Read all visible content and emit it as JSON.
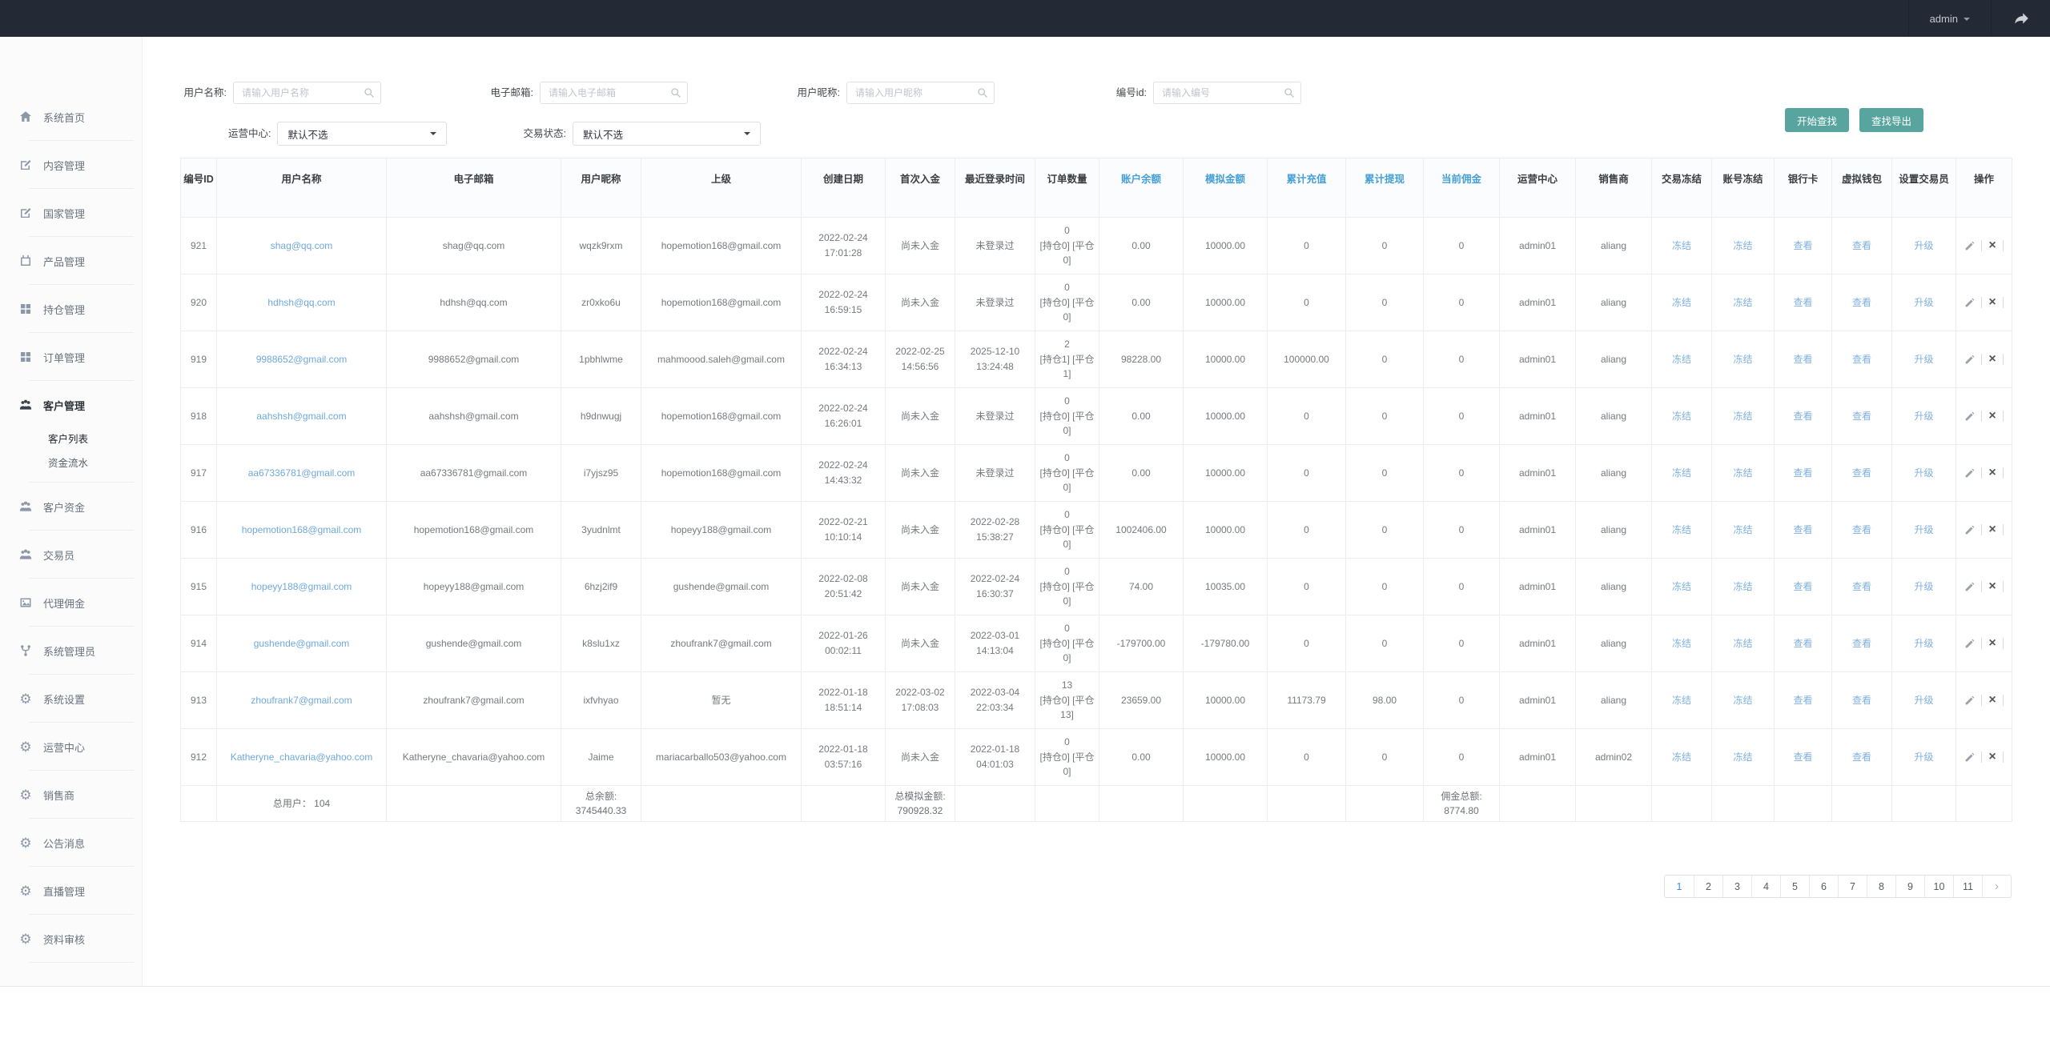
{
  "colors": {
    "topbar_bg": "#242a35",
    "accent_teal": "#58a49f",
    "link_blue": "#6fa8dc",
    "header_blue": "#459fd6",
    "active_page_blue": "#3e8ddd"
  },
  "topbar": {
    "username": "admin"
  },
  "sidebar": {
    "items": [
      {
        "id": "home",
        "icon": "home",
        "label": "系统首页"
      },
      {
        "id": "content",
        "icon": "edit",
        "label": "内容管理"
      },
      {
        "id": "country",
        "icon": "edit",
        "label": "国家管理"
      },
      {
        "id": "product",
        "icon": "calendar",
        "label": "产品管理"
      },
      {
        "id": "position",
        "icon": "grid",
        "label": "持仓管理"
      },
      {
        "id": "order",
        "icon": "grid",
        "label": "订单管理"
      },
      {
        "id": "customer",
        "icon": "users",
        "label": "客户管理",
        "active": true,
        "children": [
          {
            "id": "customer-list",
            "label": "客户列表",
            "active": true
          },
          {
            "id": "fund-flow",
            "label": "资金流水"
          }
        ]
      },
      {
        "id": "customer-funds",
        "icon": "users",
        "label": "客户资金"
      },
      {
        "id": "trader",
        "icon": "users",
        "label": "交易员"
      },
      {
        "id": "agent-commission",
        "icon": "image",
        "label": "代理佣金"
      },
      {
        "id": "sys-admin",
        "icon": "branch",
        "label": "系统管理员"
      },
      {
        "id": "sys-settings",
        "icon": "gear",
        "label": "系统设置"
      },
      {
        "id": "op-center",
        "icon": "gear",
        "label": "运营中心"
      },
      {
        "id": "seller",
        "icon": "gear",
        "label": "销售商"
      },
      {
        "id": "announcement",
        "icon": "gear",
        "label": "公告消息"
      },
      {
        "id": "live",
        "icon": "gear",
        "label": "直播管理"
      },
      {
        "id": "audit",
        "icon": "gear",
        "label": "资料审核"
      }
    ]
  },
  "filters": {
    "fields": [
      {
        "label": "用户名称:",
        "placeholder": "请输入用户名称"
      },
      {
        "label": "电子邮箱:",
        "placeholder": "请输入电子邮箱"
      },
      {
        "label": "用户昵称:",
        "placeholder": "请输入用户昵称"
      },
      {
        "label": "编号id:",
        "placeholder": "请输入编号"
      }
    ],
    "selects": [
      {
        "label": "运营中心:",
        "value": "默认不选"
      },
      {
        "label": "交易状态:",
        "value": "默认不选"
      }
    ],
    "buttons": [
      "开始查找",
      "查找导出"
    ]
  },
  "table": {
    "headers": [
      {
        "label": "编号ID"
      },
      {
        "label": "用户名称"
      },
      {
        "label": "电子邮箱"
      },
      {
        "label": "用户昵称"
      },
      {
        "label": "上级"
      },
      {
        "label": "创建日期"
      },
      {
        "label": "首次入金"
      },
      {
        "label": "最近登录时间"
      },
      {
        "label": "订单数量"
      },
      {
        "label": "账户余额",
        "blue": true
      },
      {
        "label": "模拟金额",
        "blue": true
      },
      {
        "label": "累计充值",
        "blue": true
      },
      {
        "label": "累计提现",
        "blue": true
      },
      {
        "label": "当前佣金",
        "blue": true
      },
      {
        "label": "运营中心"
      },
      {
        "label": "销售商"
      },
      {
        "label": "交易冻结"
      },
      {
        "label": "账号冻结"
      },
      {
        "label": "银行卡"
      },
      {
        "label": "虚拟钱包"
      },
      {
        "label": "设置交易员"
      },
      {
        "label": "操作"
      }
    ],
    "row_actions": {
      "trade_freeze": "冻结",
      "account_freeze": "冻结",
      "bank_card": "查看",
      "wallet": "查看",
      "set_trader": "升级"
    },
    "rows": [
      {
        "id": "921",
        "name": "shag@qq.com",
        "email": "shag@qq.com",
        "nick": "wqzk9rxm",
        "parent": "hopemotion168@gmail.com",
        "created": "2022-02-24 17:01:28",
        "first_deposit": "尚未入金",
        "last_login": "未登录过",
        "orders_count": "0",
        "orders_detail": "[持仓0] [平仓0]",
        "balance": "0.00",
        "demo": "10000.00",
        "recharge": "0",
        "withdraw": "0",
        "commission": "0",
        "center": "admin01",
        "seller": "aliang"
      },
      {
        "id": "920",
        "name": "hdhsh@qq.com",
        "email": "hdhsh@qq.com",
        "nick": "zr0xko6u",
        "parent": "hopemotion168@gmail.com",
        "created": "2022-02-24 16:59:15",
        "first_deposit": "尚未入金",
        "last_login": "未登录过",
        "orders_count": "0",
        "orders_detail": "[持仓0] [平仓0]",
        "balance": "0.00",
        "demo": "10000.00",
        "recharge": "0",
        "withdraw": "0",
        "commission": "0",
        "center": "admin01",
        "seller": "aliang"
      },
      {
        "id": "919",
        "name": "9988652@gmail.com",
        "email": "9988652@gmail.com",
        "nick": "1pbhlwme",
        "parent": "mahmoood.saleh@gmail.com",
        "created": "2022-02-24 16:34:13",
        "first_deposit": "2022-02-25 14:56:56",
        "last_login": "2025-12-10 13:24:48",
        "orders_count": "2",
        "orders_detail": "[持仓1] [平仓1]",
        "balance": "98228.00",
        "demo": "10000.00",
        "recharge": "100000.00",
        "withdraw": "0",
        "commission": "0",
        "center": "admin01",
        "seller": "aliang"
      },
      {
        "id": "918",
        "name": "aahshsh@gmail.com",
        "email": "aahshsh@gmail.com",
        "nick": "h9dnwugj",
        "parent": "hopemotion168@gmail.com",
        "created": "2022-02-24 16:26:01",
        "first_deposit": "尚未入金",
        "last_login": "未登录过",
        "orders_count": "0",
        "orders_detail": "[持仓0] [平仓0]",
        "balance": "0.00",
        "demo": "10000.00",
        "recharge": "0",
        "withdraw": "0",
        "commission": "0",
        "center": "admin01",
        "seller": "aliang"
      },
      {
        "id": "917",
        "name": "aa67336781@gmail.com",
        "email": "aa67336781@gmail.com",
        "nick": "i7yjsz95",
        "parent": "hopemotion168@gmail.com",
        "created": "2022-02-24 14:43:32",
        "first_deposit": "尚未入金",
        "last_login": "未登录过",
        "orders_count": "0",
        "orders_detail": "[持仓0] [平仓0]",
        "balance": "0.00",
        "demo": "10000.00",
        "recharge": "0",
        "withdraw": "0",
        "commission": "0",
        "center": "admin01",
        "seller": "aliang"
      },
      {
        "id": "916",
        "name": "hopemotion168@gmail.com",
        "email": "hopemotion168@gmail.com",
        "nick": "3yudnlmt",
        "parent": "hopeyy188@gmail.com",
        "created": "2022-02-21 10:10:14",
        "first_deposit": "尚未入金",
        "last_login": "2022-02-28 15:38:27",
        "orders_count": "0",
        "orders_detail": "[持仓0] [平仓0]",
        "balance": "1002406.00",
        "demo": "10000.00",
        "recharge": "0",
        "withdraw": "0",
        "commission": "0",
        "center": "admin01",
        "seller": "aliang"
      },
      {
        "id": "915",
        "name": "hopeyy188@gmail.com",
        "email": "hopeyy188@gmail.com",
        "nick": "6hzj2if9",
        "parent": "gushende@gmail.com",
        "created": "2022-02-08 20:51:42",
        "first_deposit": "尚未入金",
        "last_login": "2022-02-24 16:30:37",
        "orders_count": "0",
        "orders_detail": "[持仓0] [平仓0]",
        "balance": "74.00",
        "demo": "10035.00",
        "recharge": "0",
        "withdraw": "0",
        "commission": "0",
        "center": "admin01",
        "seller": "aliang"
      },
      {
        "id": "914",
        "name": "gushende@gmail.com",
        "email": "gushende@gmail.com",
        "nick": "k8slu1xz",
        "parent": "zhoufrank7@gmail.com",
        "created": "2022-01-26 00:02:11",
        "first_deposit": "尚未入金",
        "last_login": "2022-03-01 14:13:04",
        "orders_count": "0",
        "orders_detail": "[持仓0] [平仓0]",
        "balance": "-179700.00",
        "demo": "-179780.00",
        "recharge": "0",
        "withdraw": "0",
        "commission": "0",
        "center": "admin01",
        "seller": "aliang"
      },
      {
        "id": "913",
        "name": "zhoufrank7@gmail.com",
        "email": "zhoufrank7@gmail.com",
        "nick": "ixfvhyao",
        "parent": "暂无",
        "created": "2022-01-18 18:51:14",
        "first_deposit": "2022-03-02 17:08:03",
        "last_login": "2022-03-04 22:03:34",
        "orders_count": "13",
        "orders_detail": "[持仓0] [平仓13]",
        "balance": "23659.00",
        "demo": "10000.00",
        "recharge": "11173.79",
        "withdraw": "98.00",
        "commission": "0",
        "center": "admin01",
        "seller": "aliang"
      },
      {
        "id": "912",
        "name": "Katheryne_chavaria@yahoo.com",
        "email": "Katheryne_chavaria@yahoo.com",
        "nick": "Jaime",
        "parent": "mariacarballo503@yahoo.com",
        "created": "2022-01-18 03:57:16",
        "first_deposit": "尚未入金",
        "last_login": "2022-01-18 04:01:03",
        "orders_count": "0",
        "orders_detail": "[持仓0] [平仓0]",
        "balance": "0.00",
        "demo": "10000.00",
        "recharge": "0",
        "withdraw": "0",
        "commission": "0",
        "center": "admin01",
        "seller": "admin02"
      }
    ],
    "totals": {
      "users": "总用户： 104",
      "balance_label": "总余额:",
      "balance_value": "3745440.33",
      "demo_label": "总模拟金额:",
      "demo_value": "790928.32",
      "commission_label": "佣金总额:",
      "commission_value": "8774.80"
    }
  },
  "pagination": {
    "pages": [
      "1",
      "2",
      "3",
      "4",
      "5",
      "6",
      "7",
      "8",
      "9",
      "10",
      "11"
    ],
    "active": "1",
    "next_label": "›"
  }
}
